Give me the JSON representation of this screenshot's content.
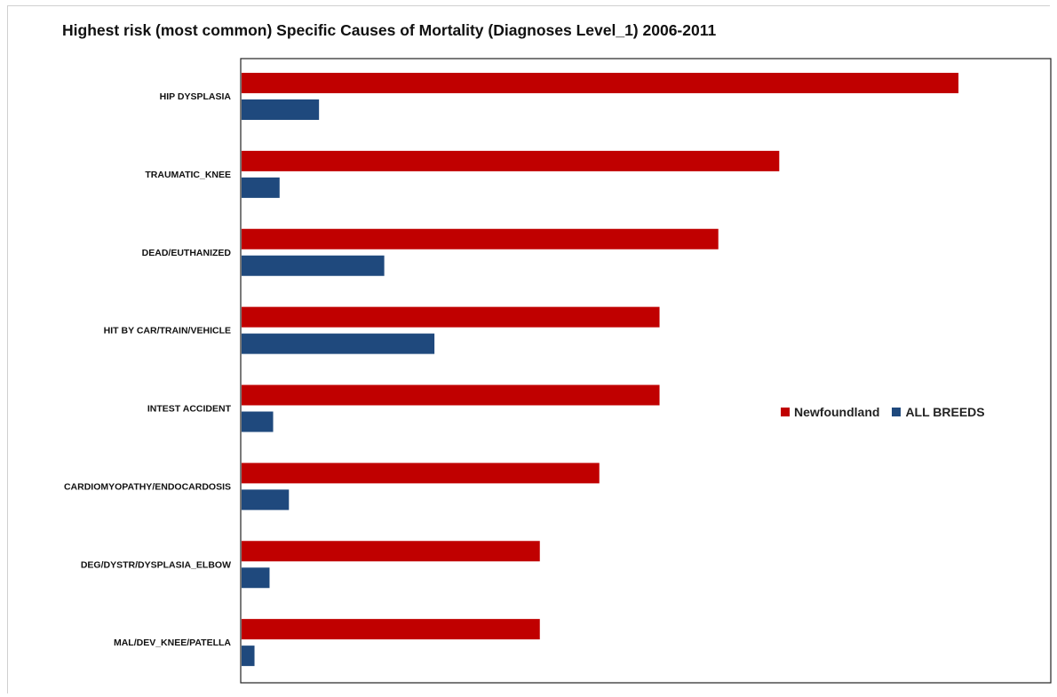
{
  "chart_data": {
    "type": "bar",
    "orientation": "horizontal",
    "title": "Highest risk (most common) Specific Causes of Mortality (Diagnoses Level_1) 2006-2011",
    "categories": [
      "HIP DYSPLASIA",
      "TRAUMATIC_KNEE",
      "DEAD/EUTHANIZED",
      "HIT BY CAR/TRAIN/VEHICLE",
      "INTEST ACCIDENT",
      "CARDIOMYOPATHY/ENDOCARDOSIS",
      "DEG/DYSTR/DYSPLASIA_ELBOW",
      "MAL/DEV_KNEE/PATELLA"
    ],
    "series": [
      {
        "name": "Newfoundland",
        "color": "#c00000",
        "values": [
          1.0,
          0.75,
          0.665,
          0.583,
          0.583,
          0.499,
          0.416,
          0.416
        ]
      },
      {
        "name": "ALL BREEDS",
        "color": "#1f497d",
        "values": [
          0.108,
          0.053,
          0.199,
          0.269,
          0.044,
          0.066,
          0.039,
          0.018
        ]
      }
    ],
    "xlim": [
      0,
      1.13
    ],
    "x_axis_visible": false,
    "grid": false,
    "legend": "right"
  }
}
